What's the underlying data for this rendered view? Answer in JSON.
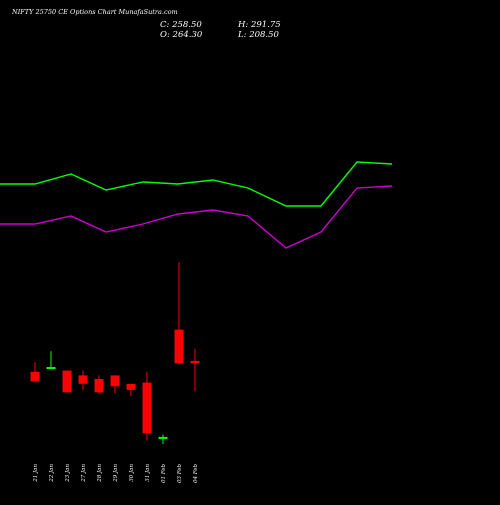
{
  "title": "NIFTY 25750  CE Options  Chart MunafaSutra.com",
  "ohlc": {
    "close_label": "C: 258.50",
    "open_label": "O: 264.30",
    "high_label": "H: 291.75",
    "low_label": "L: 208.50"
  },
  "colors": {
    "background": "#000000",
    "up": "#00ff00",
    "down": "#ff0000",
    "upper_band": "#00ff00",
    "lower_band": "#cc00cc",
    "text": "#ffffff"
  },
  "chart_data": [
    {
      "type": "line",
      "series": [
        {
          "values": [
            258,
            258,
            263,
            255,
            259,
            258,
            260,
            256,
            247,
            247,
            269,
            268
          ]
        },
        {
          "values": [
            238,
            238,
            242,
            234,
            238,
            243,
            245,
            242,
            226,
            234,
            256,
            257
          ]
        }
      ],
      "ylim": [
        200,
        300
      ]
    },
    {
      "type": "candlestick",
      "categories": [
        "21 Jan",
        "22 Jan",
        "23 Jan",
        "27 Jan",
        "28 Jan",
        "29 Jan",
        "30 Jan",
        "31 Jan",
        "01 Feb",
        "03 Feb",
        "04 Feb"
      ],
      "open": [
        19,
        22,
        20,
        16,
        13,
        16,
        9,
        10,
        -35,
        54,
        28
      ],
      "high": [
        27,
        36,
        20,
        20,
        16,
        16,
        9,
        19,
        -33,
        110,
        38
      ],
      "low": [
        11,
        22,
        2,
        4,
        1,
        1,
        -1,
        -38,
        -41,
        26,
        3
      ],
      "close": [
        11,
        23,
        2,
        9,
        2,
        7,
        4,
        -32,
        -35,
        26,
        26
      ],
      "ylim": [
        -50,
        120
      ]
    }
  ]
}
